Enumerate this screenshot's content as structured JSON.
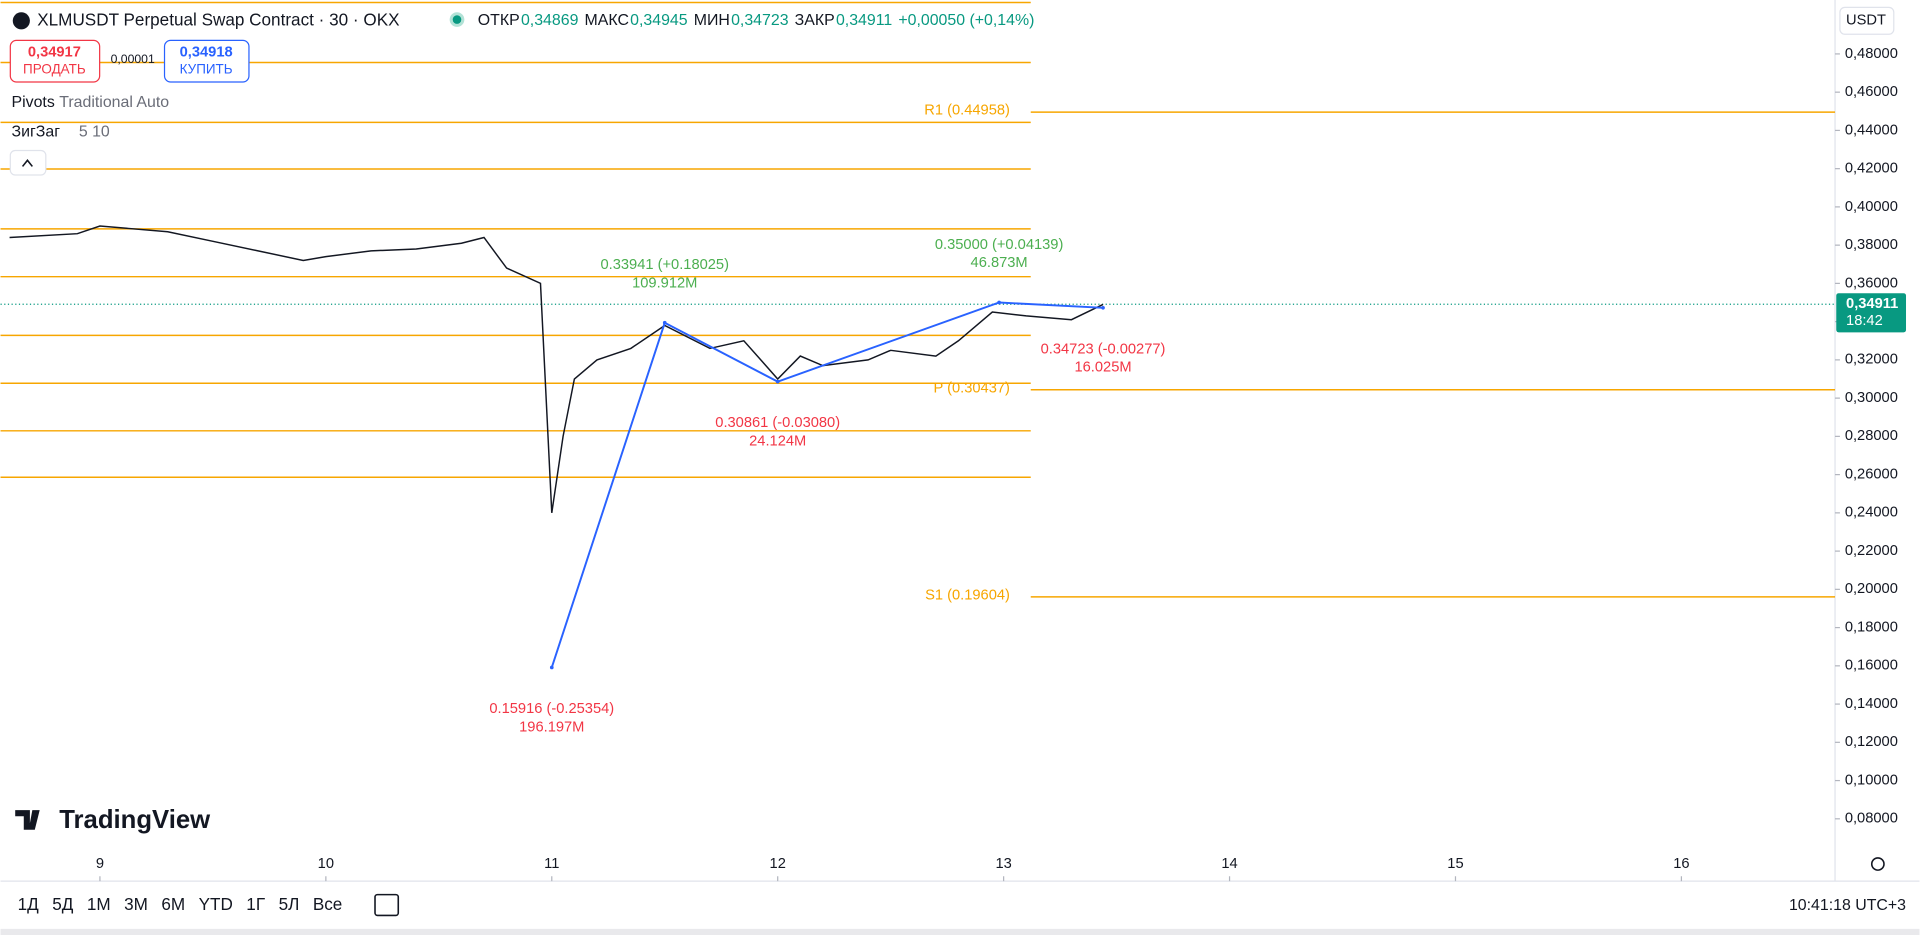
{
  "header": {
    "title": "XLMUSDT Perpetual Swap Contract · 30 · OKX",
    "ohlc": [
      {
        "label": "ОТКР",
        "value": "0,34869"
      },
      {
        "label": "МАКС",
        "value": "0,34945"
      },
      {
        "label": "МИН",
        "value": "0,34723"
      },
      {
        "label": "ЗАКР",
        "value": "0,34911"
      }
    ],
    "change": "+0,00050 (+0,14%)",
    "currency": "USDT"
  },
  "trade": {
    "sell_price": "0,34917",
    "sell": "ПРОДАТЬ",
    "spread": "0,00001",
    "buy_price": "0,34918",
    "buy": "КУПИТЬ"
  },
  "indicators": [
    {
      "name": "Pivots",
      "params": "Traditional Auto"
    },
    {
      "name": "ЗигЗаг",
      "params": "5 10"
    }
  ],
  "chart_data": {
    "type": "line",
    "color": "#131722",
    "x": [
      8.6,
      8.9,
      9.0,
      9.3,
      9.5,
      9.7,
      9.9,
      10.0,
      10.2,
      10.4,
      10.6,
      10.7,
      10.8,
      10.95,
      11.0,
      11.05,
      11.1,
      11.2,
      11.35,
      11.5,
      11.7,
      11.85,
      12.0,
      12.1,
      12.2,
      12.4,
      12.5,
      12.7,
      12.8,
      12.95,
      13.1,
      13.3,
      13.44
    ],
    "values": [
      0.384,
      0.386,
      0.39,
      0.387,
      0.382,
      0.377,
      0.372,
      0.374,
      0.377,
      0.378,
      0.381,
      0.384,
      0.368,
      0.36,
      0.24,
      0.28,
      0.31,
      0.32,
      0.326,
      0.338,
      0.326,
      0.33,
      0.31,
      0.322,
      0.317,
      0.32,
      0.325,
      0.322,
      0.33,
      0.345,
      0.343,
      0.341,
      0.349
    ],
    "xlim": [
      8.56,
      16.68
    ],
    "ylim": [
      0.0474,
      0.5082
    ],
    "xticks": [
      9,
      10,
      11,
      12,
      13,
      14,
      15,
      16
    ],
    "yticks": [
      {
        "value": 0.08,
        "label": "0,08000"
      },
      {
        "value": 0.1,
        "label": "0,10000"
      },
      {
        "value": 0.12,
        "label": "0,12000"
      },
      {
        "value": 0.14,
        "label": "0,14000"
      },
      {
        "value": 0.16,
        "label": "0,16000"
      },
      {
        "value": 0.18,
        "label": "0,18000"
      },
      {
        "value": 0.2,
        "label": "0,20000"
      },
      {
        "value": 0.22,
        "label": "0,22000"
      },
      {
        "value": 0.24,
        "label": "0,24000"
      },
      {
        "value": 0.26,
        "label": "0,26000"
      },
      {
        "value": 0.28,
        "label": "0,28000"
      },
      {
        "value": 0.3,
        "label": "0,30000"
      },
      {
        "value": 0.32,
        "label": "0,32000"
      },
      {
        "value": 0.34,
        "label": "0,34000"
      },
      {
        "value": 0.36,
        "label": "0,36000"
      },
      {
        "value": 0.38,
        "label": "0,38000"
      },
      {
        "value": 0.4,
        "label": "0,40000"
      },
      {
        "value": 0.42,
        "label": "0,42000"
      },
      {
        "value": 0.44,
        "label": "0,44000"
      },
      {
        "value": 0.46,
        "label": "0,46000"
      },
      {
        "value": 0.48,
        "label": "0,48000"
      }
    ],
    "pivots": {
      "color": "#f7a600",
      "period_start": 13.12,
      "levels": [
        {
          "label": "R1 (0.44958)",
          "value": 0.44958
        },
        {
          "label": "P (0.30437)",
          "value": 0.30437
        },
        {
          "label": "S1 (0.19604)",
          "value": 0.19604
        }
      ],
      "previous_levels": [
        0.5069,
        0.4755,
        0.4442,
        0.4198,
        0.3885,
        0.3635,
        0.3328,
        0.3078,
        0.2829,
        0.2586
      ]
    },
    "zigzag": {
      "color": "#2962ff",
      "up_color": "#4caf50",
      "down_color": "#f23645",
      "points": [
        {
          "x": 11.0,
          "value": 0.15916,
          "label": "0.15916 (-0.25354)",
          "volume": "196.197M"
        },
        {
          "x": 11.5,
          "value": 0.33941,
          "label": "0.33941 (+0.18025)",
          "volume": "109.912M"
        },
        {
          "x": 12.0,
          "value": 0.30861,
          "label": "0.30861 (-0.03080)",
          "volume": "24.124M"
        },
        {
          "x": 12.98,
          "value": 0.35,
          "label": "0.35000 (+0.04139)",
          "volume": "46.873M"
        },
        {
          "x": 13.44,
          "value": 0.34723,
          "label": "0.34723 (-0.00277)",
          "volume": "16.025M"
        }
      ]
    },
    "last_price": {
      "value": 0.34911,
      "label": "0,34911",
      "timer": "18:42",
      "color": "#089981"
    }
  },
  "toolbar": {
    "ranges": [
      "1Д",
      "5Д",
      "1М",
      "3М",
      "6М",
      "YTD",
      "1Г",
      "5Л",
      "Все"
    ],
    "clock": "10:41:18 UTC+3"
  },
  "logo": "TradingView"
}
